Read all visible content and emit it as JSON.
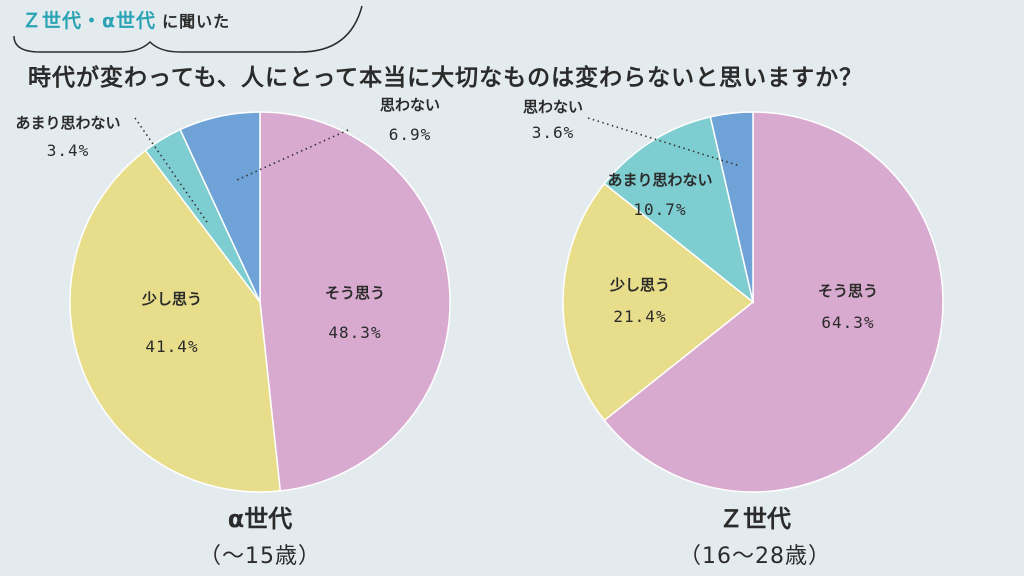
{
  "header": {
    "topic_accent": "Ｚ世代・α世代",
    "topic_plain": "に聞いた",
    "question": "時代が変わっても、人にとって本当に大切なものは変わらないと思いますか？"
  },
  "colors": {
    "sou_omou": "#d9aacf",
    "sukoshi_omou": "#e8dd8a",
    "amari_omowanai": "#7ecdd0",
    "omowanai": "#6fa3d8"
  },
  "chart_data": [
    {
      "type": "pie",
      "title": "α世代",
      "subtitle": "（〜15歳）",
      "slices": [
        {
          "label": "そう思う",
          "value": 48.3,
          "value_label": "48.3%",
          "color": "#d9aacf"
        },
        {
          "label": "少し思う",
          "value": 41.4,
          "value_label": "41.4%",
          "color": "#e8dd8a"
        },
        {
          "label": "あまり思わない",
          "value": 3.4,
          "value_label": "3.4%",
          "color": "#7ecdd0"
        },
        {
          "label": "思わない",
          "value": 6.9,
          "value_label": "6.9%",
          "color": "#6fa3d8"
        }
      ]
    },
    {
      "type": "pie",
      "title": "Ｚ世代",
      "subtitle": "（16〜28歳）",
      "slices": [
        {
          "label": "そう思う",
          "value": 64.3,
          "value_label": "64.3%",
          "color": "#d9aacf"
        },
        {
          "label": "少し思う",
          "value": 21.4,
          "value_label": "21.4%",
          "color": "#e8dd8a"
        },
        {
          "label": "あまり思わない",
          "value": 10.7,
          "value_label": "10.7%",
          "color": "#7ecdd0"
        },
        {
          "label": "思わない",
          "value": 3.6,
          "value_label": "3.6%",
          "color": "#6fa3d8"
        }
      ]
    }
  ]
}
